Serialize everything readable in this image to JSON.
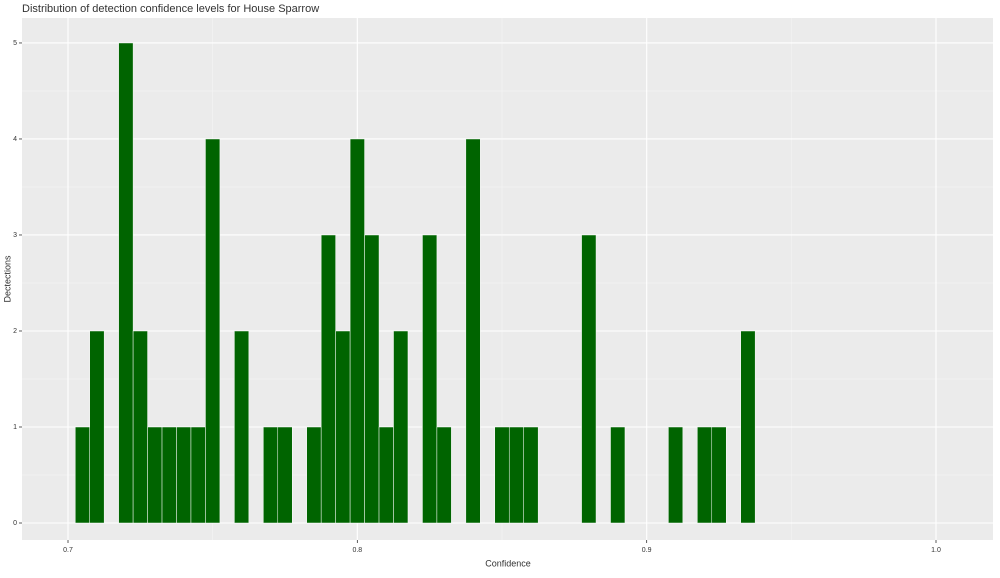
{
  "chart_data": {
    "type": "histogram",
    "title": "Distribution of detection confidence levels for House Sparrow",
    "x_label": "Confidence",
    "y_label": "Dectections",
    "bins": [
      0.7025,
      0.7075,
      0.7125,
      0.7175,
      0.7225,
      0.7275,
      0.7325,
      0.7375,
      0.7425,
      0.7475,
      0.7525,
      0.7575,
      0.7625,
      0.7675,
      0.7725,
      0.7775,
      0.7825,
      0.7875,
      0.7925,
      0.7975,
      0.8025,
      0.8075,
      0.8125,
      0.8175,
      0.8225,
      0.8275,
      0.8325,
      0.8375,
      0.8425,
      0.8475,
      0.8525,
      0.8575,
      0.8625,
      0.8675,
      0.8725,
      0.8775,
      0.8825,
      0.8875,
      0.8925,
      0.8975,
      0.9025,
      0.9075,
      0.9125,
      0.9175,
      0.9225,
      0.9275,
      0.9325,
      0.9375
    ],
    "values": [
      1,
      2,
      0,
      5,
      2,
      1,
      1,
      1,
      1,
      4,
      0,
      2,
      0,
      1,
      1,
      0,
      1,
      3,
      2,
      4,
      3,
      1,
      2,
      0,
      3,
      1,
      0,
      4,
      0,
      1,
      1,
      1,
      0,
      0,
      0,
      3,
      0,
      1,
      0,
      0,
      0,
      1,
      0,
      1,
      1,
      0,
      2
    ],
    "color": "#006400",
    "xlim": [
      0.6841,
      1.0197
    ],
    "xticks": [
      0.7,
      0.8,
      0.9,
      {
        "value": 1,
        "label": "1.0"
      }
    ],
    "ylim": [
      -0.177,
      5.26
    ],
    "yticks": [
      0,
      1,
      2,
      3,
      4,
      5
    ],
    "grid": true,
    "minor_grid": true
  }
}
